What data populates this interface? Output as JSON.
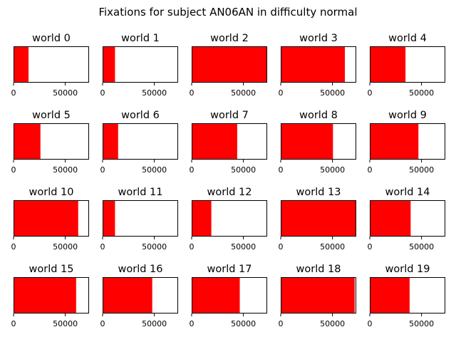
{
  "figure": {
    "suptitle": "Fixations for subject AN06AN in difficulty normal"
  },
  "colors": {
    "fixation": "#ff0000",
    "axes_edge": "#000000",
    "background": "#ffffff"
  },
  "chart_data": [
    {
      "type": "bar",
      "title": "world 0",
      "xlim": [
        0,
        73000
      ],
      "xticks": [
        0,
        50000
      ],
      "xtick_labels": [
        "0",
        "50000"
      ],
      "extent": [
        0,
        14500
      ]
    },
    {
      "type": "bar",
      "title": "world 1",
      "xlim": [
        0,
        73000
      ],
      "xticks": [
        0,
        50000
      ],
      "xtick_labels": [
        "0",
        "50000"
      ],
      "extent": [
        0,
        12000
      ]
    },
    {
      "type": "bar",
      "title": "world 2",
      "xlim": [
        0,
        73000
      ],
      "xticks": [
        0,
        50000
      ],
      "xtick_labels": [
        "0",
        "50000"
      ],
      "extent": [
        0,
        73000
      ]
    },
    {
      "type": "bar",
      "title": "world 3",
      "xlim": [
        0,
        73000
      ],
      "xticks": [
        0,
        50000
      ],
      "xtick_labels": [
        "0",
        "50000"
      ],
      "extent": [
        0,
        62000
      ]
    },
    {
      "type": "bar",
      "title": "world 4",
      "xlim": [
        0,
        73000
      ],
      "xticks": [
        0,
        50000
      ],
      "xtick_labels": [
        "0",
        "50000"
      ],
      "extent": [
        0,
        34500
      ]
    },
    {
      "type": "bar",
      "title": "world 5",
      "xlim": [
        0,
        73000
      ],
      "xticks": [
        0,
        50000
      ],
      "xtick_labels": [
        "0",
        "50000"
      ],
      "extent": [
        0,
        26000
      ]
    },
    {
      "type": "bar",
      "title": "world 6",
      "xlim": [
        0,
        73000
      ],
      "xticks": [
        0,
        50000
      ],
      "xtick_labels": [
        "0",
        "50000"
      ],
      "extent": [
        0,
        15000
      ]
    },
    {
      "type": "bar",
      "title": "world 7",
      "xlim": [
        0,
        73000
      ],
      "xticks": [
        0,
        50000
      ],
      "xtick_labels": [
        "0",
        "50000"
      ],
      "extent": [
        0,
        44000
      ]
    },
    {
      "type": "bar",
      "title": "world 8",
      "xlim": [
        0,
        73000
      ],
      "xticks": [
        0,
        50000
      ],
      "xtick_labels": [
        "0",
        "50000"
      ],
      "extent": [
        0,
        50500
      ]
    },
    {
      "type": "bar",
      "title": "world 9",
      "xlim": [
        0,
        73000
      ],
      "xticks": [
        0,
        50000
      ],
      "xtick_labels": [
        "0",
        "50000"
      ],
      "extent": [
        0,
        47000
      ]
    },
    {
      "type": "bar",
      "title": "world 10",
      "xlim": [
        0,
        73000
      ],
      "xticks": [
        0,
        50000
      ],
      "xtick_labels": [
        "0",
        "50000"
      ],
      "extent": [
        0,
        62500
      ]
    },
    {
      "type": "bar",
      "title": "world 11",
      "xlim": [
        0,
        73000
      ],
      "xticks": [
        0,
        50000
      ],
      "xtick_labels": [
        "0",
        "50000"
      ],
      "extent": [
        0,
        12000
      ]
    },
    {
      "type": "bar",
      "title": "world 12",
      "xlim": [
        0,
        73000
      ],
      "xticks": [
        0,
        50000
      ],
      "xtick_labels": [
        "0",
        "50000"
      ],
      "extent": [
        0,
        19000
      ]
    },
    {
      "type": "bar",
      "title": "world 13",
      "xlim": [
        0,
        73000
      ],
      "xticks": [
        0,
        50000
      ],
      "xtick_labels": [
        "0",
        "50000"
      ],
      "extent": [
        0,
        73000
      ]
    },
    {
      "type": "bar",
      "title": "world 14",
      "xlim": [
        0,
        73000
      ],
      "xticks": [
        0,
        50000
      ],
      "xtick_labels": [
        "0",
        "50000"
      ],
      "extent": [
        0,
        39500
      ]
    },
    {
      "type": "bar",
      "title": "world 15",
      "xlim": [
        0,
        73000
      ],
      "xticks": [
        0,
        50000
      ],
      "xtick_labels": [
        "0",
        "50000"
      ],
      "extent": [
        0,
        60500
      ]
    },
    {
      "type": "bar",
      "title": "world 16",
      "xlim": [
        0,
        73000
      ],
      "xticks": [
        0,
        50000
      ],
      "xtick_labels": [
        "0",
        "50000"
      ],
      "extent": [
        0,
        48000
      ]
    },
    {
      "type": "bar",
      "title": "world 17",
      "xlim": [
        0,
        73000
      ],
      "xticks": [
        0,
        50000
      ],
      "xtick_labels": [
        "0",
        "50000"
      ],
      "extent": [
        0,
        46500
      ]
    },
    {
      "type": "bar",
      "title": "world 18",
      "xlim": [
        0,
        73000
      ],
      "xticks": [
        0,
        50000
      ],
      "xtick_labels": [
        "0",
        "50000"
      ],
      "extent": [
        0,
        71500
      ]
    },
    {
      "type": "bar",
      "title": "world 19",
      "xlim": [
        0,
        73000
      ],
      "xticks": [
        0,
        50000
      ],
      "xtick_labels": [
        "0",
        "50000"
      ],
      "extent": [
        0,
        38500
      ]
    }
  ]
}
